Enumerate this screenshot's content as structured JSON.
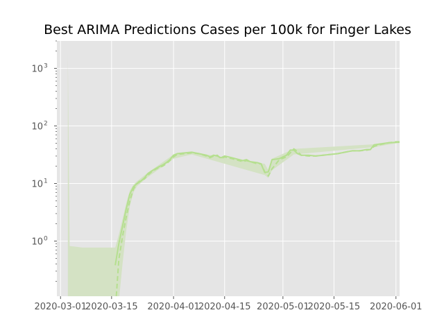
{
  "chart_data": {
    "type": "line",
    "title": "Best ARIMA Predictions Cases per 100k for Finger Lakes",
    "xlabel": "",
    "ylabel": "",
    "yscale": "log",
    "xlim": [
      "2020-02-29",
      "2020-06-02"
    ],
    "ylim": [
      0.11,
      3000
    ],
    "grid": true,
    "legend": "none",
    "x_ticks": [
      "2020-03-01",
      "2020-03-15",
      "2020-04-01",
      "2020-04-15",
      "2020-05-01",
      "2020-05-15",
      "2020-06-01"
    ],
    "y_ticks": [
      {
        "value": 1,
        "base": "10",
        "exp": "0"
      },
      {
        "value": 10,
        "base": "10",
        "exp": "1"
      },
      {
        "value": 100,
        "base": "10",
        "exp": "2"
      },
      {
        "value": 1000,
        "base": "10",
        "exp": "3"
      }
    ],
    "colors": {
      "background": "#e5e5e5",
      "grid": "#ffffff",
      "actual": "#b5df8f",
      "predicted": "#b5df8f",
      "interval": "#d4e2c4"
    },
    "series": [
      {
        "style": "solid",
        "points": [
          [
            "2020-03-16",
            0.38
          ],
          [
            "2020-03-17",
            0.9
          ],
          [
            "2020-03-18",
            1.8
          ],
          [
            "2020-03-19",
            3.6
          ],
          [
            "2020-03-20",
            6.5
          ],
          [
            "2020-03-21",
            8.8
          ],
          [
            "2020-03-22",
            10
          ],
          [
            "2020-03-23",
            11
          ],
          [
            "2020-03-24",
            12.5
          ],
          [
            "2020-03-25",
            15
          ],
          [
            "2020-03-26",
            16.5
          ],
          [
            "2020-03-27",
            18
          ],
          [
            "2020-03-28",
            19.5
          ],
          [
            "2020-03-29",
            21
          ],
          [
            "2020-03-30",
            23
          ],
          [
            "2020-03-31",
            26
          ],
          [
            "2020-04-01",
            31
          ],
          [
            "2020-04-02",
            33
          ],
          [
            "2020-04-04",
            34
          ],
          [
            "2020-04-06",
            35
          ],
          [
            "2020-04-08",
            33
          ],
          [
            "2020-04-10",
            31
          ],
          [
            "2020-04-11",
            29
          ],
          [
            "2020-04-12",
            31
          ],
          [
            "2020-04-13",
            30
          ],
          [
            "2020-04-14",
            28
          ],
          [
            "2020-04-15",
            30
          ],
          [
            "2020-04-17",
            28
          ],
          [
            "2020-04-18",
            27
          ],
          [
            "2020-04-20",
            25
          ],
          [
            "2020-04-21",
            26
          ],
          [
            "2020-04-22",
            24
          ],
          [
            "2020-04-24",
            23
          ],
          [
            "2020-04-25",
            22
          ],
          [
            "2020-04-26",
            15.5
          ],
          [
            "2020-04-27",
            16
          ],
          [
            "2020-04-28",
            26
          ],
          [
            "2020-04-30",
            27
          ],
          [
            "2020-05-02",
            31
          ],
          [
            "2020-05-03",
            38
          ],
          [
            "2020-05-04",
            38
          ],
          [
            "2020-05-05",
            33
          ],
          [
            "2020-05-06",
            31
          ],
          [
            "2020-05-08",
            31
          ],
          [
            "2020-05-10",
            30
          ],
          [
            "2020-05-12",
            31
          ],
          [
            "2020-05-14",
            32
          ],
          [
            "2020-05-16",
            33
          ],
          [
            "2020-05-18",
            35
          ],
          [
            "2020-05-20",
            37
          ],
          [
            "2020-05-22",
            37
          ],
          [
            "2020-05-24",
            39
          ],
          [
            "2020-05-25",
            39
          ],
          [
            "2020-05-26",
            47
          ],
          [
            "2020-05-28",
            49
          ],
          [
            "2020-05-30",
            51
          ],
          [
            "2020-06-01",
            52
          ],
          [
            "2020-06-02",
            52
          ]
        ]
      },
      {
        "style": "dashed",
        "points": [
          [
            "2020-03-16",
            0.06
          ],
          [
            "2020-03-17",
            0.48
          ],
          [
            "2020-03-18",
            1.2
          ],
          [
            "2020-03-19",
            2.6
          ],
          [
            "2020-03-20",
            5
          ],
          [
            "2020-03-21",
            8
          ],
          [
            "2020-03-22",
            10
          ],
          [
            "2020-03-23",
            11.5
          ],
          [
            "2020-03-24",
            12
          ],
          [
            "2020-03-25",
            14
          ],
          [
            "2020-03-26",
            16
          ],
          [
            "2020-03-27",
            17.5
          ],
          [
            "2020-03-28",
            19
          ],
          [
            "2020-03-29",
            20
          ],
          [
            "2020-03-30",
            22
          ],
          [
            "2020-03-31",
            25
          ],
          [
            "2020-04-01",
            29
          ],
          [
            "2020-04-02",
            32
          ],
          [
            "2020-04-04",
            33
          ],
          [
            "2020-04-06",
            34
          ],
          [
            "2020-04-08",
            33
          ],
          [
            "2020-04-10",
            30
          ],
          [
            "2020-04-11",
            28
          ],
          [
            "2020-04-12",
            30
          ],
          [
            "2020-04-13",
            31
          ],
          [
            "2020-04-14",
            27
          ],
          [
            "2020-04-15",
            29
          ],
          [
            "2020-04-17",
            27
          ],
          [
            "2020-04-18",
            26
          ],
          [
            "2020-04-20",
            24
          ],
          [
            "2020-04-21",
            25
          ],
          [
            "2020-04-22",
            24
          ],
          [
            "2020-04-24",
            22
          ],
          [
            "2020-04-25",
            22
          ],
          [
            "2020-04-26",
            16
          ],
          [
            "2020-04-27",
            13.5
          ],
          [
            "2020-04-28",
            18
          ],
          [
            "2020-04-30",
            26
          ],
          [
            "2020-05-02",
            29
          ],
          [
            "2020-05-03",
            34
          ],
          [
            "2020-05-04",
            40
          ],
          [
            "2020-05-05",
            36
          ],
          [
            "2020-05-06",
            31
          ],
          [
            "2020-05-08",
            30
          ],
          [
            "2020-05-10",
            30
          ],
          [
            "2020-05-12",
            31
          ],
          [
            "2020-05-14",
            32
          ],
          [
            "2020-05-16",
            33
          ],
          [
            "2020-05-18",
            35
          ],
          [
            "2020-05-20",
            37
          ],
          [
            "2020-05-22",
            37
          ],
          [
            "2020-05-24",
            38
          ],
          [
            "2020-05-25",
            39
          ],
          [
            "2020-05-26",
            44
          ],
          [
            "2020-05-28",
            48
          ],
          [
            "2020-05-30",
            51
          ],
          [
            "2020-06-01",
            53
          ],
          [
            "2020-06-02",
            53
          ]
        ]
      }
    ],
    "interval": {
      "upper": [
        [
          "2020-03-03",
          1800
        ],
        [
          "2020-03-03.5",
          0.82
        ],
        [
          "2020-03-05",
          0.8
        ],
        [
          "2020-03-07",
          0.77
        ],
        [
          "2020-03-16",
          0.77
        ],
        [
          "2020-03-17",
          1.3
        ],
        [
          "2020-03-18",
          2.4
        ],
        [
          "2020-03-19",
          4.5
        ],
        [
          "2020-03-20",
          7.5
        ],
        [
          "2020-03-21",
          9.5
        ],
        [
          "2020-03-22",
          11
        ],
        [
          "2020-03-25",
          15.5
        ],
        [
          "2020-04-01",
          32
        ],
        [
          "2020-04-06",
          35
        ],
        [
          "2020-04-26",
          22
        ],
        [
          "2020-04-27",
          17
        ],
        [
          "2020-04-28",
          27
        ],
        [
          "2020-05-04",
          40
        ],
        [
          "2020-05-26",
          48
        ],
        [
          "2020-06-02",
          54
        ]
      ],
      "lower": [
        [
          "2020-03-03",
          0.09
        ],
        [
          "2020-03-16",
          0.09
        ],
        [
          "2020-03-17",
          0.09
        ],
        [
          "2020-03-18",
          0.4
        ],
        [
          "2020-03-19",
          1.5
        ],
        [
          "2020-03-20",
          4
        ],
        [
          "2020-03-21",
          7
        ],
        [
          "2020-03-22",
          9
        ],
        [
          "2020-03-25",
          13
        ],
        [
          "2020-04-01",
          27
        ],
        [
          "2020-04-06",
          32
        ],
        [
          "2020-04-26",
          14
        ],
        [
          "2020-04-27",
          12.5
        ],
        [
          "2020-04-28",
          17
        ],
        [
          "2020-05-04",
          32
        ],
        [
          "2020-05-26",
          43
        ],
        [
          "2020-06-02",
          51
        ]
      ]
    }
  }
}
